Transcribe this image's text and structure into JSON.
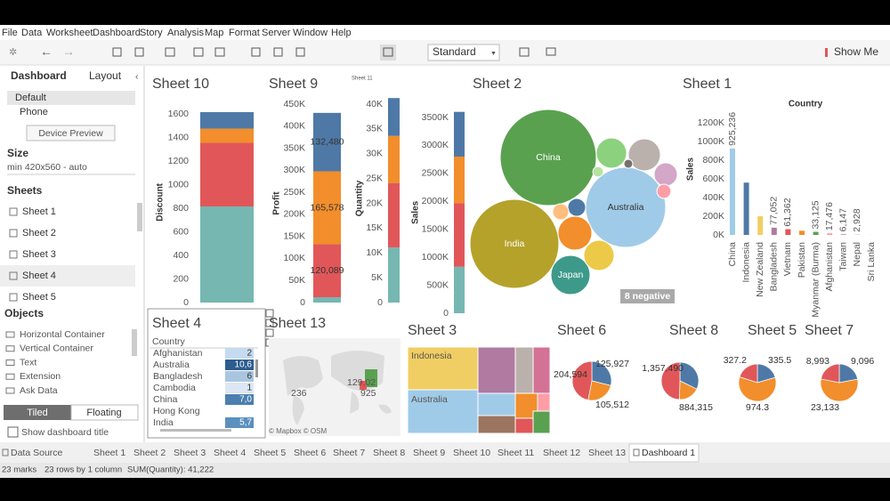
{
  "menu": [
    "File",
    "Data",
    "Worksheet",
    "Dashboard",
    "Story",
    "Analysis",
    "Map",
    "Format",
    "Server",
    "Window",
    "Help"
  ],
  "toolbar": {
    "fit": "Standard",
    "show_me": "Show Me"
  },
  "panel": {
    "tabs": [
      "Dashboard",
      "Layout"
    ],
    "devices": [
      "Default",
      "Phone"
    ],
    "device_preview": "Device Preview",
    "size_title": "Size",
    "size_value": "min 420x560 - auto",
    "sheets_title": "Sheets",
    "sheets": [
      "Sheet 1",
      "Sheet 2",
      "Sheet 3",
      "Sheet 4",
      "Sheet 5"
    ],
    "objects_title": "Objects",
    "objects": [
      "Horizontal Container",
      "Vertical Container",
      "Text",
      "Extension",
      "Ask Data"
    ],
    "layout_modes": [
      "Tiled",
      "Floating"
    ],
    "show_title": "Show dashboard title"
  },
  "chart_data": [
    {
      "type": "stacked_bar",
      "title": "Sheet 10",
      "y_label": "Discount",
      "values": [
        815,
        540,
        120,
        140
      ],
      "colors": [
        "#76b7b2",
        "#e15759",
        "#f28e2b",
        "#4e79a7"
      ],
      "ylim": [
        0,
        1700
      ],
      "yticks": [
        0,
        200,
        400,
        600,
        800,
        1000,
        1200,
        1400,
        1600
      ]
    },
    {
      "type": "stacked_bar",
      "title": "Sheet 9",
      "y_label": "Profit",
      "values": [
        12000,
        120089,
        165578,
        132480
      ],
      "value_labels": [
        null,
        "120,089",
        "165,578",
        "132,480"
      ],
      "colors": [
        "#76b7b2",
        "#e15759",
        "#f28e2b",
        "#4e79a7"
      ],
      "ylim": [
        0,
        450000
      ],
      "yticks": [
        0,
        {
          "value": 50000,
          "label": "50K"
        },
        {
          "value": 100000,
          "label": "100K"
        },
        {
          "value": 150000,
          "label": "150K"
        },
        {
          "value": 200000,
          "label": "200K"
        },
        {
          "value": 250000,
          "label": "250K"
        },
        {
          "value": 300000,
          "label": "300K"
        },
        {
          "value": 350000,
          "label": "350K"
        },
        {
          "value": 400000,
          "label": "400K"
        },
        {
          "value": 450000,
          "label": "450K"
        }
      ]
    },
    {
      "type": "stacked_bar",
      "title": "Sheet 11",
      "y_label": "Quantity",
      "values": [
        11100,
        13000,
        9500,
        7622
      ],
      "colors": [
        "#76b7b2",
        "#e15759",
        "#f28e2b",
        "#4e79a7"
      ],
      "ylim": [
        0,
        42000
      ],
      "yticks": [
        0,
        {
          "value": 5000,
          "label": "5K"
        },
        {
          "value": 10000,
          "label": "10K"
        },
        {
          "value": 15000,
          "label": "15K"
        },
        {
          "value": 20000,
          "label": "20K"
        },
        {
          "value": 25000,
          "label": "25K"
        },
        {
          "value": 30000,
          "label": "30K"
        },
        {
          "value": 35000,
          "label": "35K"
        },
        {
          "value": 40000,
          "label": "40K"
        }
      ]
    },
    {
      "type": "stacked_bar",
      "title": "Sheet 2",
      "y_label": "Sales",
      "values": [
        830000,
        1140000,
        830000,
        800000
      ],
      "colors": [
        "#76b7b2",
        "#e15759",
        "#f28e2b",
        "#4e79a7"
      ],
      "ylim": [
        0,
        3600000
      ],
      "yticks": [
        0,
        {
          "value": 500000,
          "label": "500K"
        },
        {
          "value": 1000000,
          "label": "1000K"
        },
        {
          "value": 1500000,
          "label": "1500K"
        },
        {
          "value": 2000000,
          "label": "2000K"
        },
        {
          "value": 2500000,
          "label": "2500K"
        },
        {
          "value": 3000000,
          "label": "3000K"
        },
        {
          "value": 3500000,
          "label": "3500K"
        }
      ],
      "bubbles": {
        "names": [
          "China",
          "Australia",
          "India",
          "Japan",
          null,
          null,
          null,
          null,
          null,
          null,
          null,
          null,
          null,
          null
        ],
        "values": [
          925236,
          643000,
          793000,
          154000,
          115000,
          92000,
          92000,
          103000,
          32000,
          26000,
          54000,
          20000,
          8000,
          11000
        ],
        "colors": [
          "#59a14f",
          "#a0cbe8",
          "#b5a22b",
          "#3d9a8b",
          "#f28e2b",
          "#edc948",
          "#8cd17d",
          "#bab0ac",
          "#4e79a7",
          "#ffbe7d",
          "#d4a6c8",
          "#ff9da7",
          "#79706e",
          "#b6e3a0"
        ]
      },
      "annotation": "8 negative"
    },
    {
      "type": "bar",
      "title": "Sheet 1",
      "subtitle": "Country",
      "y_label": "Sales",
      "categories": [
        "China",
        "Indonesia",
        "New Zealand",
        "Bangladesh",
        "Vietnam",
        "Pakistan",
        "Myanmar (Burma)",
        "Afghanistan",
        "Taiwan",
        "Nepal",
        "Sri Lanka"
      ],
      "values": [
        925236,
        560000,
        200000,
        77052,
        61362,
        45000,
        33125,
        17476,
        6147,
        2928,
        1000
      ],
      "value_labels": [
        "925,236",
        null,
        null,
        "77,052",
        "61,362",
        null,
        "33,125",
        "17,476",
        "6,147",
        "2,928",
        null
      ],
      "colors": [
        "#a0cbe8",
        "#4e79a7",
        "#f1ce63",
        "#b07aa1",
        "#e15759",
        "#f28e2b",
        "#59a14f",
        "#ff9da7",
        "#9c755f",
        "#76b7b2",
        "#edc948"
      ],
      "ylim": [
        0,
        1300000
      ],
      "yticks": [
        {
          "value": 0,
          "label": "0K"
        },
        {
          "value": 200000,
          "label": "200K"
        },
        {
          "value": 400000,
          "label": "400K"
        },
        {
          "value": 600000,
          "label": "600K"
        },
        {
          "value": 800000,
          "label": "800K"
        },
        {
          "value": 1000000,
          "label": "1000K"
        },
        {
          "value": 1200000,
          "label": "1200K"
        }
      ]
    },
    {
      "type": "table",
      "title": "Sheet 4",
      "header": "Country",
      "rows": [
        {
          "country": "Afghanistan",
          "value": "2"
        },
        {
          "country": "Australia",
          "value": "10,6"
        },
        {
          "country": "Bangladesh",
          "value": "6"
        },
        {
          "country": "Cambodia",
          "value": "1"
        },
        {
          "country": "China",
          "value": "7,0"
        },
        {
          "country": "Hong Kong"
        },
        {
          "country": "India",
          "value": "5,7"
        }
      ]
    },
    {
      "type": "map",
      "title": "Sheet 13",
      "labels": [
        "236",
        "129,02",
        "925"
      ],
      "credit": "© Mapbox © OSM"
    },
    {
      "type": "treemap",
      "title": "Sheet 3",
      "labels": [
        "Indonesia",
        "Australia"
      ]
    },
    {
      "type": "pie",
      "title": "Sheet 6",
      "values": [
        125927,
        105512,
        204594
      ],
      "value_labels": [
        "125,927",
        "105,512",
        "204,594"
      ],
      "colors": [
        "#4e79a7",
        "#f28e2b",
        "#e15759"
      ]
    },
    {
      "type": "pie",
      "title": "Sheet 8",
      "values": [
        884315,
        500000,
        1357490
      ],
      "value_labels": [
        "884,315",
        null,
        "1,357,490"
      ],
      "colors": [
        "#4e79a7",
        "#f28e2b",
        "#e15759"
      ]
    },
    {
      "type": "pie",
      "title": "Sheet 5",
      "values": [
        335.5,
        974.3,
        327.2
      ],
      "colors": [
        "#4e79a7",
        "#f28e2b",
        "#e15759"
      ]
    },
    {
      "type": "pie",
      "title": "Sheet 7",
      "values": [
        9096,
        23133,
        8993
      ],
      "value_labels": [
        "9,096",
        "23,133",
        "8,993"
      ],
      "colors": [
        "#4e79a7",
        "#f28e2b",
        "#e15759"
      ]
    }
  ],
  "tabs": [
    "Data Source",
    "Sheet 1",
    "Sheet 2",
    "Sheet 3",
    "Sheet 4",
    "Sheet 5",
    "Sheet 6",
    "Sheet 7",
    "Sheet 8",
    "Sheet 9",
    "Sheet 10",
    "Sheet 11",
    "Sheet 12",
    "Sheet 13",
    "Dashboard 1"
  ],
  "status": [
    "23 marks",
    "23 rows by 1 column",
    "SUM(Quantity): 41,222"
  ]
}
